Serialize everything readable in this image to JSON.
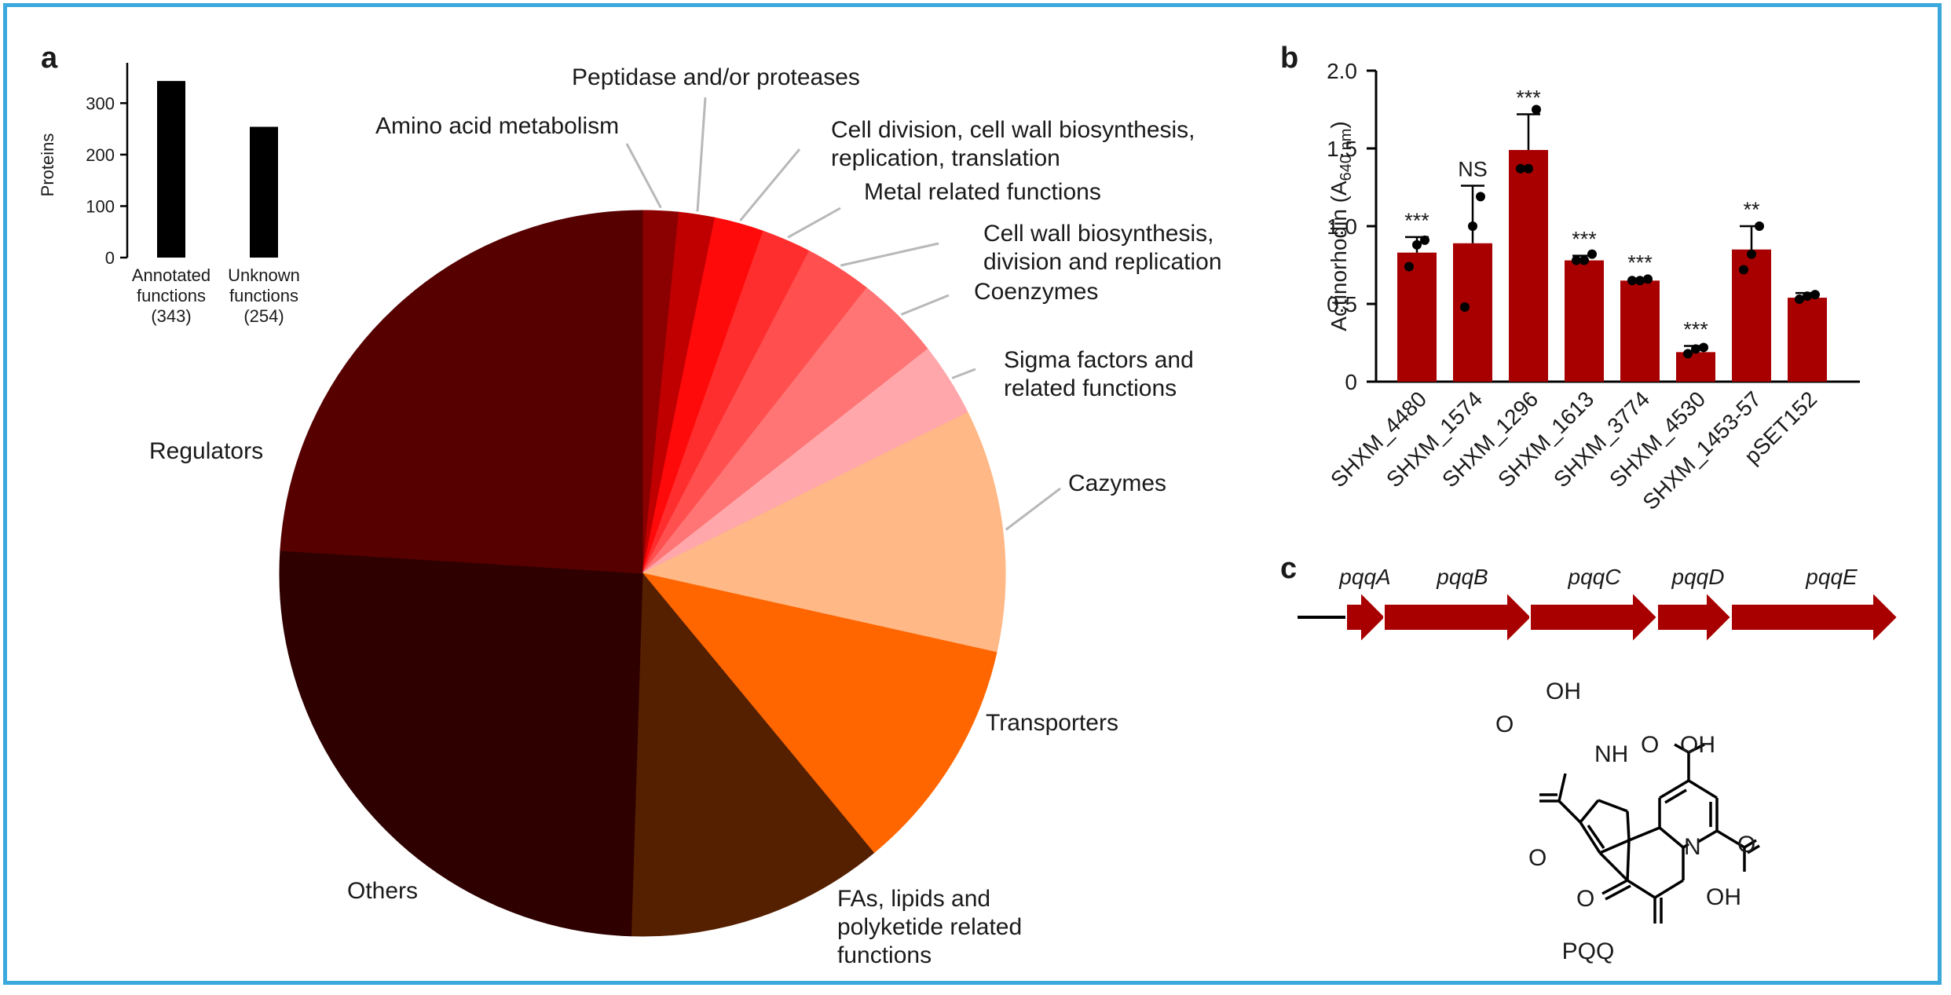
{
  "chart_data": [
    {
      "panel": "a",
      "type": "bar",
      "categories": [
        "Annotated functions (343)",
        "Unknown functions (254)"
      ],
      "category_lines": [
        [
          "Annotated",
          "functions",
          "(343)"
        ],
        [
          "Unknown",
          "functions",
          "(254)"
        ]
      ],
      "values": [
        343,
        254
      ],
      "ylabel": "Proteins",
      "yticks": [
        0,
        100,
        200,
        300
      ],
      "ylim": [
        0,
        360
      ],
      "color": "#000000"
    },
    {
      "panel": "a",
      "type": "pie",
      "labels": [
        "Amino acid metabolism",
        "Peptidase and/or proteases",
        "Cell division, cell wall biosynthesis, replication, translation",
        "Metal related functions",
        "Cell wall biosynthesis, division and replication",
        "Coenzymes",
        "Sigma factors and related functions",
        "Cazymes",
        "Transporters",
        "FAs, lipids and polyketide related functions",
        "Others",
        "Regulators"
      ],
      "label_lines": [
        [
          "Amino acid metabolism"
        ],
        [
          "Peptidase and/or proteases"
        ],
        [
          "Cell division, cell wall biosynthesis,",
          "replication, translation"
        ],
        [
          "Metal related functions"
        ],
        [
          "Cell wall biosynthesis,",
          "division and replication"
        ],
        [
          "Coenzymes"
        ],
        [
          "Sigma factors and",
          "related functions"
        ],
        [
          "Cazymes"
        ],
        [
          "Transporters"
        ],
        [
          "FAs, lipids and",
          "polyketide related",
          "functions"
        ],
        [
          "Others"
        ],
        [
          "Regulators"
        ]
      ],
      "values_percent": [
        1.6,
        1.6,
        2.2,
        2.2,
        3.0,
        3.8,
        3.3,
        10.8,
        10.5,
        11.5,
        25.5,
        24.0
      ],
      "colors": [
        "#8b0000",
        "#c00000",
        "#ff0a0a",
        "#ff2e2e",
        "#ff4f4f",
        "#ff7474",
        "#ffa7aa",
        "#ffb886",
        "#ff6600",
        "#552000",
        "#2e0000",
        "#560000"
      ]
    },
    {
      "panel": "b",
      "type": "bar",
      "ylabel_main": "Actinorhodin (A",
      "ylabel_sub": "640 nm",
      "ylabel_end": ")",
      "categories": [
        "SHXM_4480",
        "SHXM_1574",
        "SHXM_1296",
        "SHXM_1613",
        "SHXM_3774",
        "SHXM_4530",
        "SHXM_1453-57",
        "pSET152"
      ],
      "values": [
        0.83,
        0.89,
        1.49,
        0.78,
        0.65,
        0.19,
        0.85,
        0.54
      ],
      "error_upper": [
        0.93,
        1.26,
        1.72,
        0.81,
        0.66,
        0.23,
        1.0,
        0.57
      ],
      "points": [
        [
          0.74,
          0.88,
          0.91
        ],
        [
          0.48,
          1.0,
          1.19
        ],
        [
          1.37,
          1.37,
          1.75
        ],
        [
          0.78,
          0.78,
          0.82
        ],
        [
          0.65,
          0.65,
          0.66
        ],
        [
          0.18,
          0.21,
          0.22
        ],
        [
          0.72,
          0.82,
          1.0
        ],
        [
          0.53,
          0.55,
          0.56
        ]
      ],
      "significance": [
        "***",
        "NS",
        "***",
        "***",
        "***",
        "***",
        "**",
        ""
      ],
      "yticks": [
        "0",
        "0.5",
        "1.0",
        "1.5",
        "2.0"
      ],
      "ylim": [
        0,
        2.0
      ],
      "color": "#a80000"
    }
  ],
  "panels": {
    "a": "a",
    "b": "b",
    "c": "c"
  },
  "gene_cluster": {
    "genes": [
      "pqqA",
      "pqqB",
      "pqqC",
      "pqqD",
      "pqqE"
    ],
    "color": "#a80000"
  },
  "molecule": {
    "name": "PQQ",
    "labels": {
      "oh_top": "OH",
      "o_left": "O",
      "nh": "NH",
      "cooh_right": "O",
      "oh_right": "OH",
      "n_ring": "N",
      "o_k1": "O",
      "o_k2": "O",
      "o_e": "O",
      "oh_e": "OH"
    }
  }
}
